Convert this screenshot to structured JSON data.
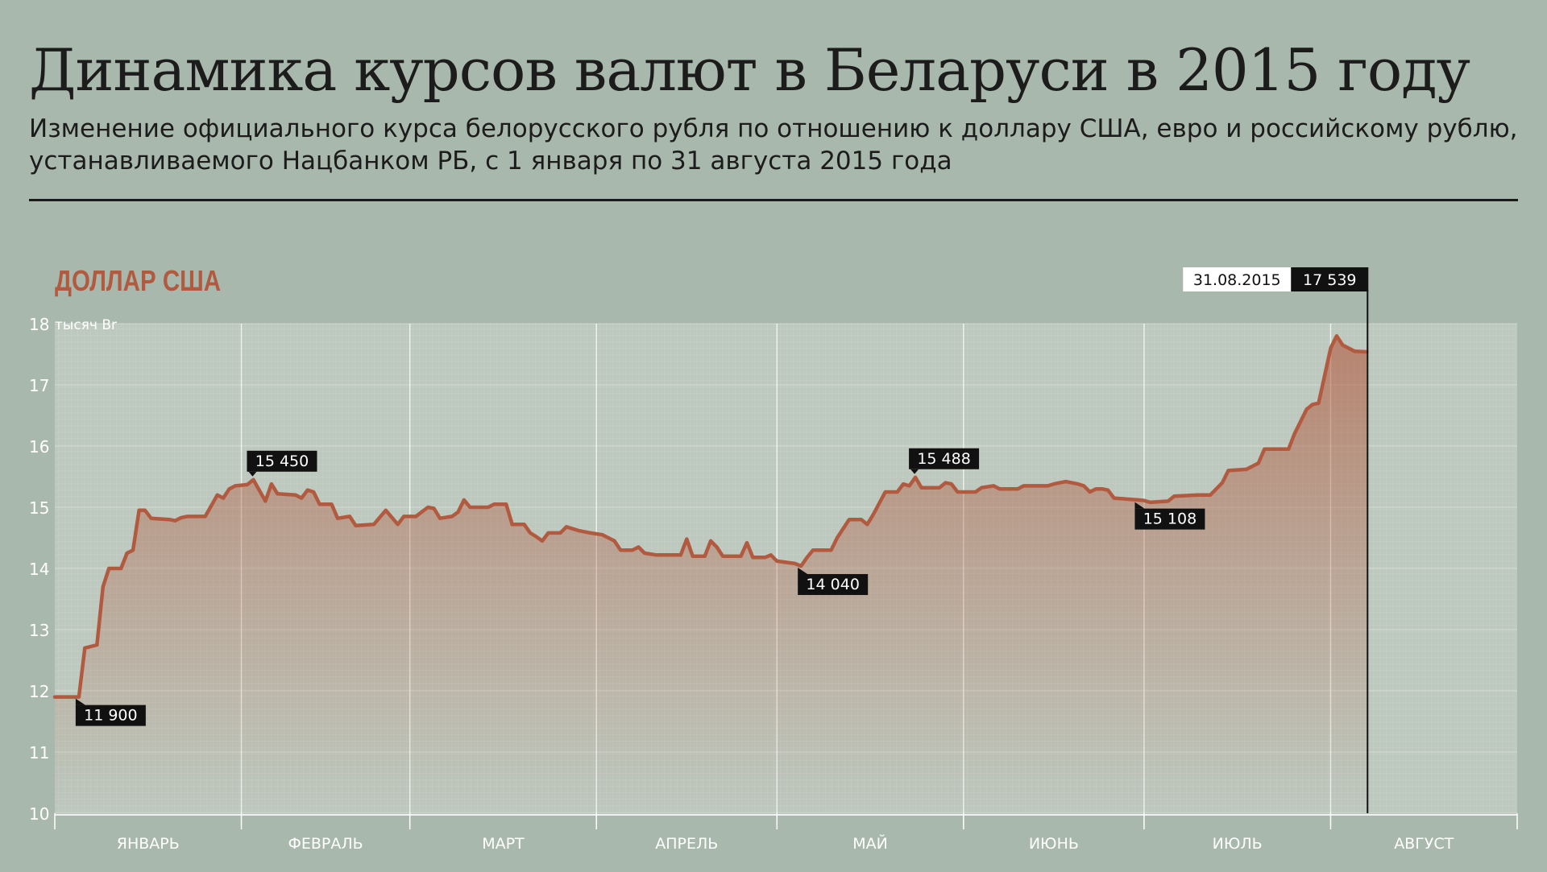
{
  "header": {
    "title": "Динамика курсов валют в Беларуси в 2015 году",
    "subtitle": "Изменение официального курса белорусского рубля по отношению к доллару США, евро и российскому рублю, устанавливаемого Нацбанком РБ, с 1 января по 31 августа 2015 года"
  },
  "colors": {
    "background": "#a9b8ad",
    "plot_background": "#bdc8be",
    "line": "#b25a3f",
    "series_label": "#b25a3f",
    "callout_background": "#111111",
    "callout_text": "#ffffff"
  },
  "chart_data": {
    "type": "area",
    "title": "ДОЛЛАР США",
    "ylabel": "тысяч Br",
    "ylim": [
      10,
      18
    ],
    "y_ticks": [
      "10",
      "11",
      "12",
      "13",
      "14",
      "15",
      "16",
      "17",
      "18"
    ],
    "ytick_unit_label": "тысяч Br",
    "x_domain": [
      0,
      243
    ],
    "months": [
      {
        "label": "ЯНВАРЬ",
        "start_day": 0,
        "end_day": 31
      },
      {
        "label": "ФЕВРАЛЬ",
        "start_day": 31,
        "end_day": 59
      },
      {
        "label": "МАРТ",
        "start_day": 59,
        "end_day": 90
      },
      {
        "label": "АПРЕЛЬ",
        "start_day": 90,
        "end_day": 120
      },
      {
        "label": "МАЙ",
        "start_day": 120,
        "end_day": 151
      },
      {
        "label": "ИЮНЬ",
        "start_day": 151,
        "end_day": 181
      },
      {
        "label": "ИЮЛЬ",
        "start_day": 181,
        "end_day": 212
      },
      {
        "label": "АВГУСТ",
        "start_day": 212,
        "end_day": 243
      }
    ],
    "series": [
      {
        "points": [
          [
            0,
            11.9
          ],
          [
            4,
            11.9
          ],
          [
            5,
            12.7
          ],
          [
            7,
            12.75
          ],
          [
            8,
            13.7
          ],
          [
            9,
            14.0
          ],
          [
            11,
            14.0
          ],
          [
            12,
            14.25
          ],
          [
            13,
            14.3
          ],
          [
            14,
            14.95
          ],
          [
            15,
            14.95
          ],
          [
            16,
            14.82
          ],
          [
            19,
            14.8
          ],
          [
            20,
            14.78
          ],
          [
            21,
            14.83
          ],
          [
            22,
            14.85
          ],
          [
            25,
            14.85
          ],
          [
            27,
            15.2
          ],
          [
            28,
            15.15
          ],
          [
            29,
            15.3
          ],
          [
            30,
            15.35
          ],
          [
            32,
            15.37
          ],
          [
            33,
            15.45
          ],
          [
            35,
            15.1
          ],
          [
            36,
            15.38
          ],
          [
            37,
            15.22
          ],
          [
            40,
            15.2
          ],
          [
            41,
            15.15
          ],
          [
            42,
            15.28
          ],
          [
            43,
            15.25
          ],
          [
            44,
            15.05
          ],
          [
            46,
            15.05
          ],
          [
            47,
            14.82
          ],
          [
            49,
            14.85
          ],
          [
            50,
            14.7
          ],
          [
            53,
            14.72
          ],
          [
            55,
            14.95
          ],
          [
            57,
            14.72
          ],
          [
            58,
            14.85
          ],
          [
            60,
            14.85
          ],
          [
            62,
            15.0
          ],
          [
            63,
            14.98
          ],
          [
            64,
            14.82
          ],
          [
            66,
            14.85
          ],
          [
            67,
            14.92
          ],
          [
            68,
            15.12
          ],
          [
            69,
            15.0
          ],
          [
            72,
            15.0
          ],
          [
            73,
            15.05
          ],
          [
            75,
            15.05
          ],
          [
            76,
            14.72
          ],
          [
            78,
            14.72
          ],
          [
            79,
            14.58
          ],
          [
            80,
            14.52
          ],
          [
            81,
            14.45
          ],
          [
            82,
            14.58
          ],
          [
            84,
            14.58
          ],
          [
            85,
            14.68
          ],
          [
            87,
            14.62
          ],
          [
            89,
            14.58
          ],
          [
            91,
            14.55
          ],
          [
            93,
            14.45
          ],
          [
            94,
            14.3
          ],
          [
            96,
            14.3
          ],
          [
            97,
            14.35
          ],
          [
            98,
            14.25
          ],
          [
            100,
            14.22
          ],
          [
            104,
            14.22
          ],
          [
            105,
            14.48
          ],
          [
            106,
            14.2
          ],
          [
            108,
            14.2
          ],
          [
            109,
            14.45
          ],
          [
            110,
            14.35
          ],
          [
            111,
            14.2
          ],
          [
            114,
            14.2
          ],
          [
            115,
            14.42
          ],
          [
            116,
            14.18
          ],
          [
            118,
            14.18
          ],
          [
            119,
            14.22
          ],
          [
            120,
            14.12
          ],
          [
            123,
            14.08
          ],
          [
            124,
            14.04
          ],
          [
            125,
            14.18
          ],
          [
            126,
            14.3
          ],
          [
            129,
            14.3
          ],
          [
            130,
            14.5
          ],
          [
            132,
            14.8
          ],
          [
            134,
            14.8
          ],
          [
            135,
            14.72
          ],
          [
            136,
            14.88
          ],
          [
            138,
            15.25
          ],
          [
            140,
            15.25
          ],
          [
            141,
            15.38
          ],
          [
            142,
            15.35
          ],
          [
            143,
            15.49
          ],
          [
            144,
            15.32
          ],
          [
            147,
            15.32
          ],
          [
            148,
            15.4
          ],
          [
            149,
            15.38
          ],
          [
            150,
            15.25
          ],
          [
            153,
            15.25
          ],
          [
            154,
            15.32
          ],
          [
            156,
            15.35
          ],
          [
            157,
            15.3
          ],
          [
            160,
            15.3
          ],
          [
            161,
            15.35
          ],
          [
            163,
            15.35
          ],
          [
            165,
            15.35
          ],
          [
            166,
            15.38
          ],
          [
            168,
            15.42
          ],
          [
            170,
            15.38
          ],
          [
            171,
            15.35
          ],
          [
            172,
            15.25
          ],
          [
            173,
            15.3
          ],
          [
            174,
            15.3
          ],
          [
            175,
            15.28
          ],
          [
            176,
            15.15
          ],
          [
            180,
            15.12
          ],
          [
            181,
            15.11
          ],
          [
            182,
            15.08
          ],
          [
            185,
            15.1
          ],
          [
            186,
            15.18
          ],
          [
            190,
            15.2
          ],
          [
            192,
            15.2
          ],
          [
            194,
            15.4
          ],
          [
            195,
            15.6
          ],
          [
            198,
            15.62
          ],
          [
            200,
            15.72
          ],
          [
            201,
            15.95
          ],
          [
            205,
            15.95
          ],
          [
            206,
            16.2
          ],
          [
            207,
            16.4
          ],
          [
            208,
            16.6
          ],
          [
            209,
            16.68
          ],
          [
            210,
            16.7
          ],
          [
            211,
            17.15
          ],
          [
            212,
            17.6
          ],
          [
            213,
            17.8
          ],
          [
            214,
            17.65
          ],
          [
            216,
            17.55
          ],
          [
            218,
            17.54
          ]
        ]
      }
    ],
    "callouts": [
      {
        "day": 4,
        "value": 11.9,
        "label": "11 900"
      },
      {
        "day": 33,
        "value": 15.45,
        "label": "15 450"
      },
      {
        "day": 124,
        "value": 14.04,
        "label": "14 040"
      },
      {
        "day": 143,
        "value": 15.49,
        "label": "15 488"
      },
      {
        "day": 180,
        "value": 15.11,
        "label": "15 108"
      }
    ],
    "final": {
      "day": 218,
      "date": "31.08.2015",
      "value": "17 539"
    }
  }
}
